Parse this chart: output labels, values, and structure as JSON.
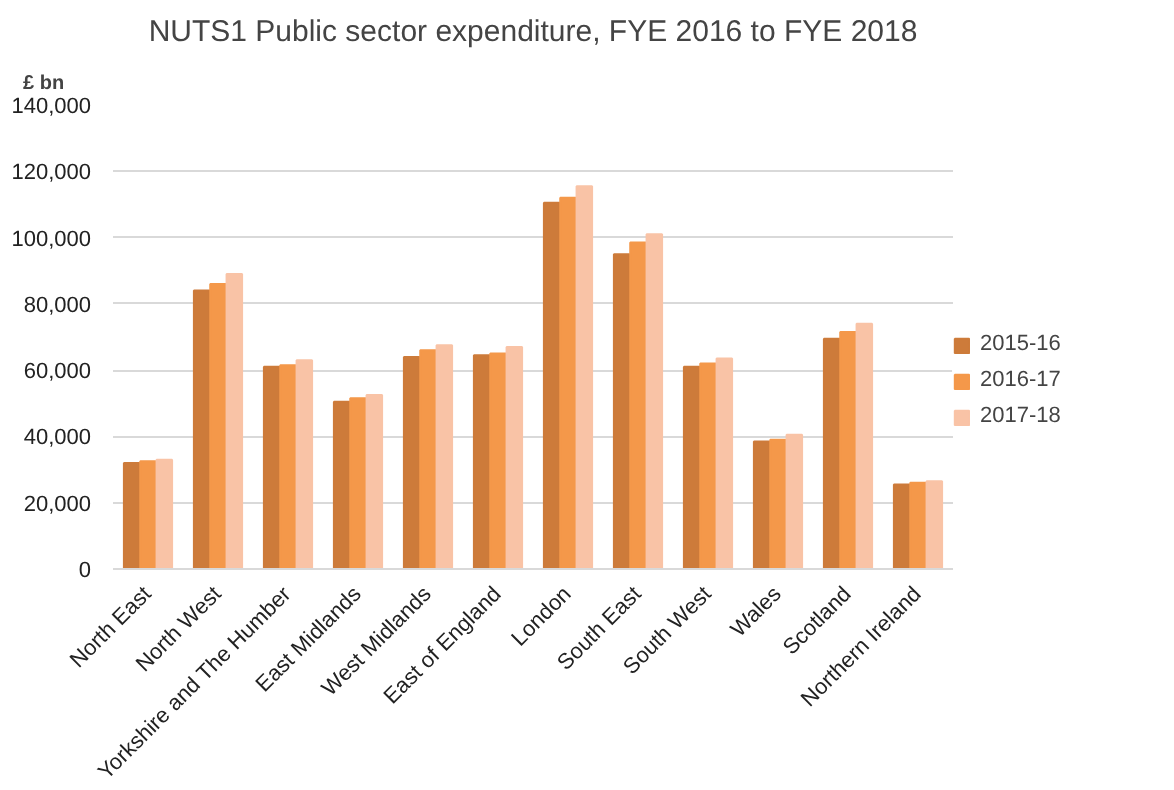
{
  "chart_data": {
    "type": "bar",
    "title": "NUTS1 Public sector expenditure, FYE 2016 to FYE 2018",
    "ylabel": "£ bn",
    "categories": [
      "North East",
      "North West",
      "Yorkshire and The Humber",
      "East Midlands",
      "West Midlands",
      "East of England",
      "London",
      "South East",
      "South West",
      "Wales",
      "Scotland",
      "Northern Ireland"
    ],
    "series": [
      {
        "name": "2015-16",
        "color": "#cd7b3a",
        "values": [
          32000,
          84000,
          61000,
          50500,
          64000,
          64500,
          110500,
          95000,
          61000,
          38500,
          69500,
          25500
        ]
      },
      {
        "name": "2016-17",
        "color": "#f4984a",
        "values": [
          32500,
          86000,
          61500,
          51500,
          66000,
          65000,
          112000,
          98500,
          62000,
          39000,
          71500,
          26000
        ]
      },
      {
        "name": "2017-18",
        "color": "#f9c3a6",
        "values": [
          33000,
          89000,
          63000,
          52500,
          67500,
          67000,
          115500,
          101000,
          63500,
          40500,
          74000,
          26500
        ]
      }
    ],
    "ylim": [
      0,
      140000
    ],
    "yticks": [
      {
        "value": 0,
        "label": "0"
      },
      {
        "value": 20000,
        "label": "20,000"
      },
      {
        "value": 40000,
        "label": "40,000"
      },
      {
        "value": 60000,
        "label": "60,000"
      },
      {
        "value": 80000,
        "label": "80,000"
      },
      {
        "value": 100000,
        "label": "100,000"
      },
      {
        "value": 120000,
        "label": "120,000"
      },
      {
        "value": 140000,
        "label": "140,000"
      }
    ],
    "grid": "y",
    "legend": "right"
  }
}
